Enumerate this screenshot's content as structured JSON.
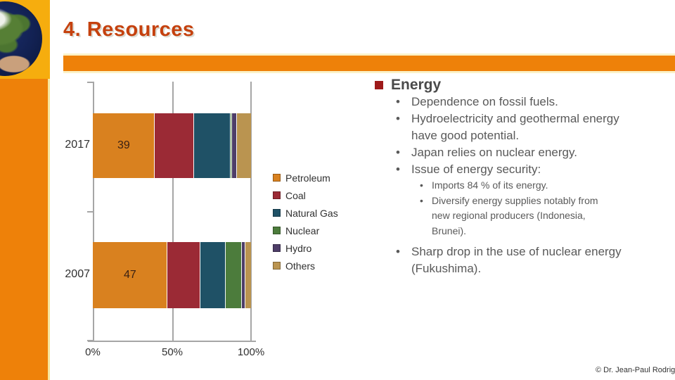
{
  "slide": {
    "title": "4. Resources",
    "copyright": "© Dr. Jean-Paul Rodrig"
  },
  "chart_data": {
    "type": "bar",
    "orientation": "horizontal",
    "stacked": true,
    "units": "percent of energy mix",
    "categories": [
      "2017",
      "2007"
    ],
    "series": [
      {
        "name": "Petroleum",
        "color": "#D9811F",
        "values": [
          39,
          47
        ]
      },
      {
        "name": "Coal",
        "color": "#9B2A35",
        "values": [
          25,
          21
        ]
      },
      {
        "name": "Natural Gas",
        "color": "#1F5166",
        "values": [
          23,
          16
        ]
      },
      {
        "name": "Nuclear",
        "color": "#4C7C3C",
        "values": [
          1,
          10
        ]
      },
      {
        "name": "Hydro",
        "color": "#4E3D68",
        "values": [
          3,
          2.5
        ]
      },
      {
        "name": "Others",
        "color": "#BA9450",
        "values": [
          9,
          3.5
        ]
      }
    ],
    "bar_labels": [
      "39",
      "47"
    ],
    "x_ticks": [
      "0%",
      "50%",
      "100%"
    ],
    "xlim": [
      0,
      100
    ],
    "grid": true,
    "legend_position": "right",
    "legend_entries": [
      "Petroleum",
      "Coal",
      "Natural Gas",
      "Nuclear",
      "Hydro",
      "Others"
    ]
  },
  "panel": {
    "heading": "Energy",
    "bullets": [
      {
        "level": 1,
        "text": "Dependence on fossil fuels."
      },
      {
        "level": 1,
        "text": "Hydroelectricity and geothermal energy\nhave good potential."
      },
      {
        "level": 1,
        "text": "Japan relies on nuclear energy."
      },
      {
        "level": 1,
        "text": "Issue of energy security:"
      },
      {
        "level": 2,
        "text": "Imports 84 % of its energy."
      },
      {
        "level": 2,
        "text": "Diversify energy supplies notably from\nnew regional producers (Indonesia,\nBrunei)."
      },
      {
        "level": 1,
        "text": "Sharp drop in the use of nuclear energy\n(Fukushima)."
      }
    ]
  }
}
